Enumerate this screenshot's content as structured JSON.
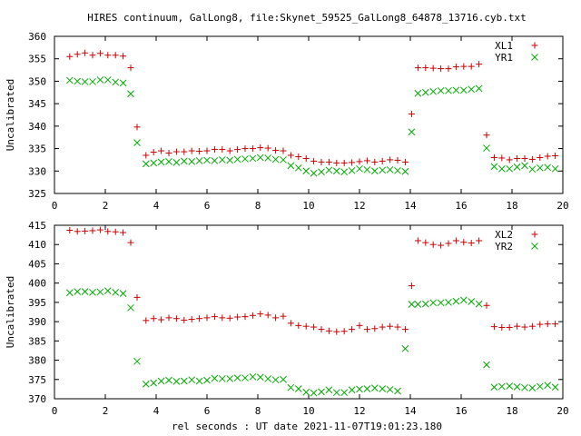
{
  "title": "HIRES continuum, GalLong8, file:Skynet_59525_GalLong8_64878_13716.cyb.txt",
  "xlabel": "rel seconds : UT date 2021-11-07T19:01:23.180",
  "colors": {
    "series1": "#cc0000",
    "series2": "#00aa00"
  },
  "chart_data": [
    {
      "type": "scatter",
      "ylabel": "Uncalibrated",
      "xlim": [
        0,
        20
      ],
      "ylim": [
        325,
        360
      ],
      "xticks": [
        0,
        2,
        4,
        6,
        8,
        10,
        12,
        14,
        16,
        18,
        20
      ],
      "yticks": [
        325,
        330,
        335,
        340,
        345,
        350,
        355,
        360
      ],
      "x": [
        0.6,
        0.9,
        1.2,
        1.5,
        1.8,
        2.1,
        2.4,
        2.7,
        3.0,
        3.25,
        3.6,
        3.9,
        4.2,
        4.5,
        4.8,
        5.1,
        5.4,
        5.7,
        6.0,
        6.3,
        6.6,
        6.9,
        7.2,
        7.5,
        7.8,
        8.1,
        8.4,
        8.7,
        9.0,
        9.3,
        9.6,
        9.9,
        10.2,
        10.5,
        10.8,
        11.1,
        11.4,
        11.7,
        12.0,
        12.3,
        12.6,
        12.9,
        13.2,
        13.5,
        13.8,
        14.05,
        14.3,
        14.6,
        14.9,
        15.2,
        15.5,
        15.8,
        16.1,
        16.4,
        16.7,
        17.0,
        17.3,
        17.6,
        17.9,
        18.2,
        18.5,
        18.8,
        19.1,
        19.4,
        19.7
      ],
      "legend_position": "top-right",
      "series": [
        {
          "name": "XL1",
          "marker": "+",
          "values": [
            355.5,
            356.0,
            356.3,
            355.8,
            356.2,
            355.8,
            355.8,
            355.6,
            353.0,
            339.8,
            333.5,
            334.2,
            334.5,
            334.0,
            334.3,
            334.3,
            334.5,
            334.4,
            334.5,
            334.8,
            334.8,
            334.5,
            334.8,
            335.0,
            335.0,
            335.2,
            335.1,
            334.6,
            334.5,
            333.5,
            333.2,
            332.8,
            332.2,
            332.0,
            332.0,
            331.8,
            331.8,
            331.9,
            332.1,
            332.3,
            332.0,
            332.2,
            332.5,
            332.4,
            332.0,
            342.7,
            353.0,
            353.0,
            352.9,
            352.8,
            352.8,
            353.2,
            353.3,
            353.3,
            353.8,
            338.0,
            333.0,
            332.9,
            332.5,
            332.8,
            332.8,
            332.6,
            333.0,
            333.3,
            333.4
          ]
        },
        {
          "name": "YR1",
          "marker": "x",
          "values": [
            350.2,
            350.0,
            349.9,
            349.9,
            350.3,
            350.3,
            349.8,
            349.6,
            347.2,
            336.3,
            331.6,
            331.8,
            332.0,
            332.1,
            331.9,
            332.2,
            332.1,
            332.3,
            332.4,
            332.3,
            332.5,
            332.4,
            332.6,
            332.7,
            332.8,
            333.0,
            332.9,
            332.6,
            332.5,
            331.2,
            330.7,
            330.0,
            329.5,
            329.8,
            330.2,
            330.0,
            329.8,
            330.1,
            330.5,
            330.3,
            330.0,
            330.2,
            330.3,
            330.1,
            329.9,
            338.7,
            347.3,
            347.5,
            347.7,
            347.9,
            347.9,
            348.0,
            348.0,
            348.2,
            348.4,
            335.1,
            331.0,
            330.5,
            330.5,
            330.9,
            331.2,
            330.4,
            330.7,
            330.8,
            330.5
          ]
        }
      ]
    },
    {
      "type": "scatter",
      "ylabel": "Uncalibrated",
      "xlim": [
        0,
        20
      ],
      "ylim": [
        370,
        415
      ],
      "xticks": [
        0,
        2,
        4,
        6,
        8,
        10,
        12,
        14,
        16,
        18,
        20
      ],
      "yticks": [
        370,
        375,
        380,
        385,
        390,
        395,
        400,
        405,
        410,
        415
      ],
      "x": [
        0.6,
        0.9,
        1.2,
        1.5,
        1.8,
        2.1,
        2.4,
        2.7,
        3.0,
        3.25,
        3.6,
        3.9,
        4.2,
        4.5,
        4.8,
        5.1,
        5.4,
        5.7,
        6.0,
        6.3,
        6.6,
        6.9,
        7.2,
        7.5,
        7.8,
        8.1,
        8.4,
        8.7,
        9.0,
        9.3,
        9.6,
        9.9,
        10.2,
        10.5,
        10.8,
        11.1,
        11.4,
        11.7,
        12.0,
        12.3,
        12.6,
        12.9,
        13.2,
        13.5,
        13.8,
        14.05,
        14.3,
        14.6,
        14.9,
        15.2,
        15.5,
        15.8,
        16.1,
        16.4,
        16.7,
        17.0,
        17.3,
        17.6,
        17.9,
        18.2,
        18.5,
        18.8,
        19.1,
        19.4,
        19.7
      ],
      "legend_position": "top-right",
      "series": [
        {
          "name": "XL2",
          "marker": "+",
          "values": [
            413.7,
            413.4,
            413.5,
            413.6,
            413.8,
            413.4,
            413.3,
            413.1,
            410.5,
            396.3,
            390.3,
            390.8,
            390.5,
            391.0,
            390.8,
            390.4,
            390.6,
            390.8,
            391.0,
            391.3,
            391.0,
            390.9,
            391.2,
            391.3,
            391.6,
            392.0,
            391.7,
            391.0,
            391.4,
            389.6,
            389.0,
            388.8,
            388.6,
            388.0,
            387.6,
            387.4,
            387.5,
            388.0,
            389.0,
            388.0,
            388.2,
            388.6,
            388.8,
            388.6,
            388.0,
            399.3,
            411.0,
            410.5,
            410.0,
            409.8,
            410.3,
            411.0,
            410.6,
            410.4,
            411.0,
            394.2,
            388.7,
            388.5,
            388.5,
            388.8,
            388.6,
            388.8,
            389.3,
            389.4,
            389.4
          ]
        },
        {
          "name": "YR2",
          "marker": "x",
          "values": [
            397.5,
            397.8,
            397.8,
            397.6,
            397.7,
            398.0,
            397.6,
            397.3,
            393.6,
            379.7,
            373.8,
            374.1,
            374.6,
            374.8,
            374.5,
            374.6,
            374.9,
            374.6,
            374.8,
            375.3,
            375.2,
            375.2,
            375.4,
            375.4,
            375.7,
            375.6,
            375.2,
            374.9,
            375.0,
            372.9,
            372.6,
            371.7,
            371.5,
            371.8,
            372.3,
            371.6,
            371.6,
            372.3,
            372.5,
            372.6,
            372.8,
            372.6,
            372.4,
            372.0,
            383.0,
            394.5,
            394.5,
            394.6,
            394.9,
            394.9,
            395.0,
            395.3,
            395.6,
            395.2,
            394.6,
            378.8,
            373.0,
            373.2,
            373.3,
            373.1,
            372.9,
            372.8,
            373.2,
            373.5,
            373.0
          ]
        }
      ]
    }
  ]
}
